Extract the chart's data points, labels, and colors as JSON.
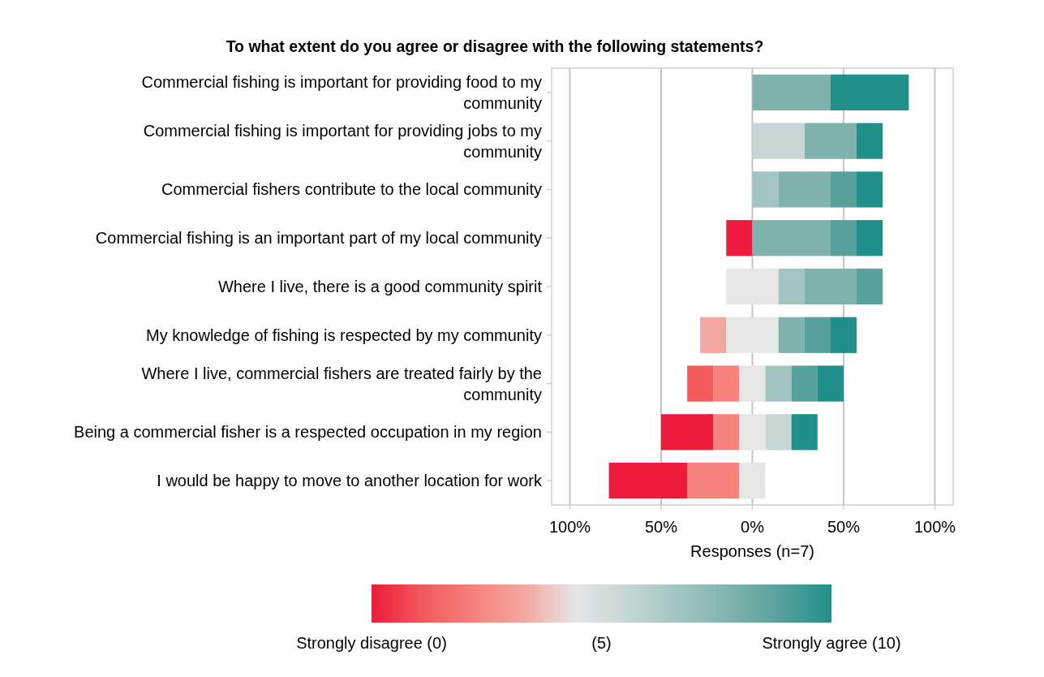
{
  "chart_data": {
    "type": "bar",
    "orientation": "horizontal",
    "title": "To what extent do you agree or disagree with the following statements?",
    "categories": [
      "Commercial fishing is important for providing food to my community",
      "Commercial fishing is important for providing jobs to my community",
      "Commercial fishers contribute to the local community",
      "Commercial fishing is an important part of my local community",
      "Where I live, there is a good community spirit",
      "My knowledge of fishing is respected by my community",
      "Where I live, commercial fishers are treated fairly by the community",
      "Being a commercial fisher is a respected occupation in my region",
      "I would be happy to move to another location for work"
    ],
    "series": [
      {
        "color": "#ee1b3c",
        "values": [
          null,
          null,
          null,
          14.3,
          null,
          null,
          null,
          28.6,
          42.9
        ],
        "base": [
          null,
          null,
          null,
          -14.3,
          null,
          null,
          null,
          -50,
          -78.6
        ]
      },
      {
        "color": "#f25a5c",
        "values": [
          null,
          null,
          null,
          null,
          null,
          null,
          14.3,
          null,
          null
        ],
        "base": [
          null,
          null,
          null,
          null,
          null,
          null,
          -35.7,
          null,
          null
        ]
      },
      {
        "color": "#f6827c",
        "values": [
          null,
          null,
          null,
          null,
          null,
          null,
          14.3,
          14.3,
          28.6
        ],
        "base": [
          null,
          null,
          null,
          null,
          null,
          null,
          -21.4,
          -21.4,
          -35.7
        ]
      },
      {
        "color": "#f4a7a0",
        "values": [
          null,
          null,
          null,
          null,
          null,
          14.3,
          null,
          null,
          null
        ],
        "base": [
          null,
          null,
          null,
          null,
          null,
          -28.6,
          null,
          null,
          null
        ]
      },
      {
        "color": "#e6e6e6",
        "values": [
          null,
          null,
          null,
          null,
          28.6,
          28.6,
          14.2,
          14.2,
          14.2
        ],
        "base": [
          null,
          null,
          null,
          null,
          -14.3,
          -14.3,
          -7.1,
          -7.1,
          -7.1
        ]
      },
      {
        "color": "#c5d6d4",
        "values": [
          null,
          28.6,
          null,
          null,
          null,
          null,
          null,
          14.3,
          null
        ],
        "base": [
          null,
          0,
          null,
          null,
          null,
          null,
          null,
          7.1,
          null
        ]
      },
      {
        "color": "#a3c5c2",
        "values": [
          null,
          null,
          14.3,
          null,
          14.3,
          null,
          14.3,
          null,
          null
        ],
        "base": [
          null,
          null,
          0,
          null,
          14.3,
          null,
          7.1,
          null,
          null
        ]
      },
      {
        "color": "#80b3ae",
        "values": [
          42.9,
          28.5,
          28.6,
          42.9,
          28.5,
          14.3,
          null,
          null,
          null
        ],
        "base": [
          0,
          28.6,
          14.3,
          0,
          28.6,
          14.3,
          null,
          null,
          null
        ]
      },
      {
        "color": "#57a19c",
        "values": [
          null,
          null,
          14.2,
          14.2,
          14.3,
          14.3,
          14.3,
          null,
          null
        ],
        "base": [
          null,
          null,
          42.9,
          42.9,
          57.1,
          28.6,
          21.4,
          null,
          null
        ]
      },
      {
        "color": "#21908a",
        "values": [
          42.8,
          14.3,
          14.3,
          14.3,
          null,
          14.2,
          14.3,
          14.3,
          null
        ],
        "base": [
          42.9,
          57.1,
          57.1,
          57.1,
          null,
          42.9,
          35.7,
          21.4,
          null
        ]
      }
    ],
    "xlim": [
      -110,
      110
    ],
    "xticks": [
      {
        "value": -100,
        "label": "100%"
      },
      {
        "value": -50,
        "label": "50%"
      },
      {
        "value": 0,
        "label": "0%"
      },
      {
        "value": 50,
        "label": "50%"
      },
      {
        "value": 100,
        "label": "100%"
      }
    ],
    "xlabel": "Responses (n=7)",
    "grid": "x",
    "clim": [
      0,
      10
    ],
    "cticks": [
      {
        "value": 0,
        "label": "Strongly disagree (0)"
      },
      {
        "value": 5,
        "label": "(5)"
      },
      {
        "value": 10,
        "label": "Strongly agree (10)"
      }
    ]
  }
}
